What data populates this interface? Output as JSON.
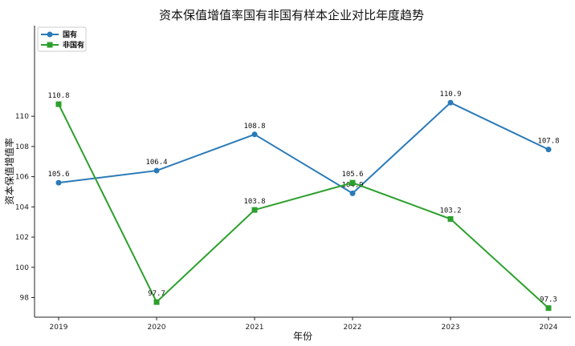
{
  "chart_data": {
    "type": "line",
    "title": "资本保值增值率国有非国有样本企业对比年度趋势",
    "xlabel": "年份",
    "ylabel": "资本保值增值率",
    "categories": [
      "2019",
      "2020",
      "2021",
      "2022",
      "2023",
      "2024"
    ],
    "ylim": [
      96.7,
      116.0
    ],
    "yticks": [
      98,
      100,
      102,
      104,
      106,
      108,
      110
    ],
    "grid": false,
    "legend_position": "top-left",
    "series": [
      {
        "name": "国有",
        "color": "#2a7ab8",
        "marker": "circle",
        "values": [
          105.6,
          106.4,
          108.8,
          104.9,
          110.9,
          107.8
        ],
        "labels": [
          "105.6",
          "106.4",
          "108.8",
          "104.9",
          "110.9",
          "107.8"
        ]
      },
      {
        "name": "非国有",
        "color": "#2ca02c",
        "marker": "square",
        "values": [
          110.8,
          97.7,
          103.8,
          105.6,
          103.2,
          97.3
        ],
        "labels": [
          "110.8",
          "97.7",
          "103.8",
          "105.6",
          "103.2",
          "97.3"
        ]
      }
    ]
  }
}
